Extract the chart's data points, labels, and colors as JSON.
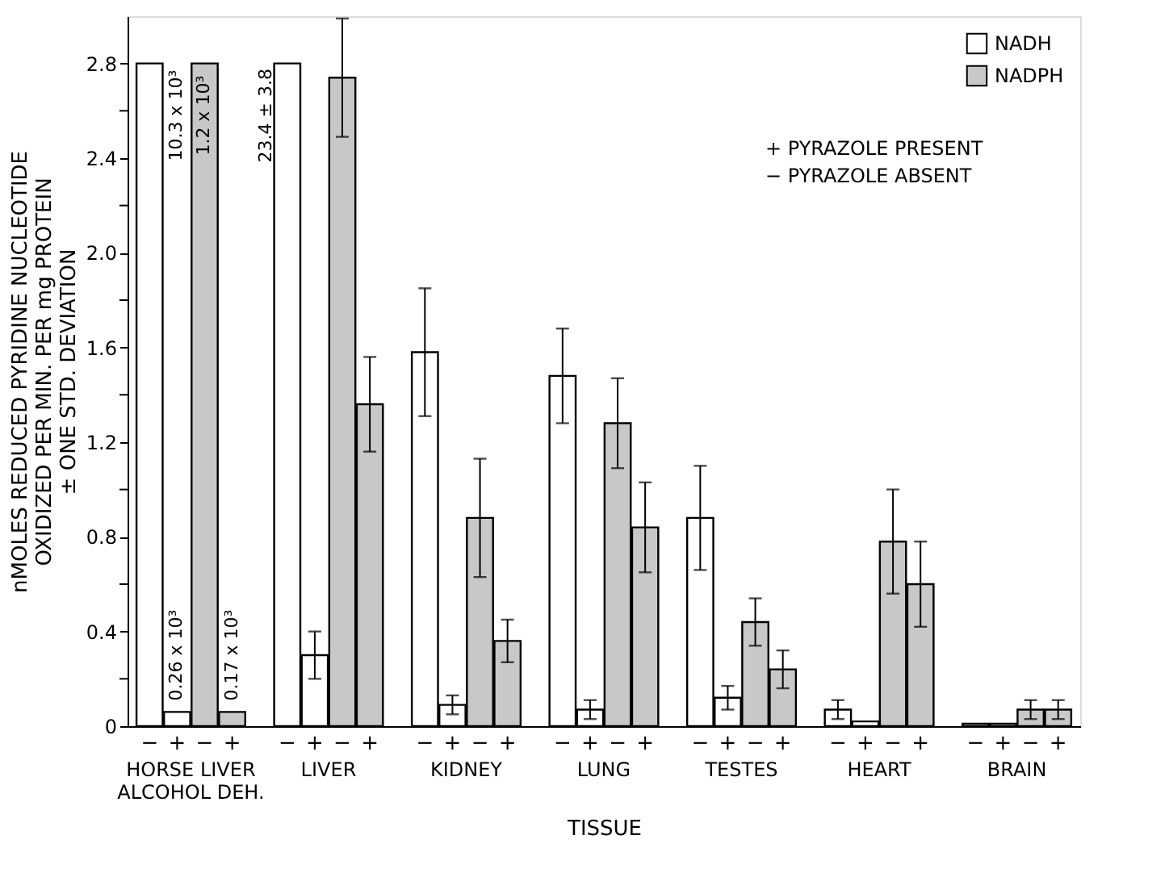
{
  "chart_data": {
    "type": "bar",
    "categories": [
      "−",
      "+",
      "−",
      "+",
      null,
      "−",
      "+",
      "−",
      "+",
      null,
      "−",
      "+",
      "−",
      "+",
      null,
      "−",
      "+",
      "−",
      "+",
      null,
      "−",
      "+",
      "−",
      "+",
      null,
      "−",
      "+",
      "−",
      "+",
      null,
      "−",
      "+",
      "−",
      "+"
    ],
    "series": [
      {
        "name": "NADH",
        "color": "#ffffff",
        "values": [
          2.8,
          0.06,
          null,
          null,
          null,
          2.8,
          0.3,
          null,
          null,
          null,
          1.58,
          0.09,
          null,
          null,
          null,
          1.48,
          0.07,
          null,
          null,
          null,
          0.88,
          0.12,
          null,
          null,
          null,
          0.07,
          0.02,
          null,
          null,
          null,
          0.01,
          0.01,
          null,
          null
        ],
        "errors": [
          null,
          null,
          null,
          null,
          null,
          null,
          0.1,
          null,
          null,
          null,
          0.27,
          0.04,
          null,
          null,
          null,
          0.2,
          0.04,
          null,
          null,
          null,
          0.22,
          0.05,
          null,
          null,
          null,
          0.04,
          null,
          null,
          null,
          null,
          null,
          null,
          null,
          null
        ]
      },
      {
        "name": "NADPH",
        "color": "#c8c8c8",
        "values": [
          null,
          null,
          2.8,
          0.06,
          null,
          null,
          null,
          2.74,
          1.36,
          null,
          null,
          null,
          0.88,
          0.36,
          null,
          null,
          null,
          1.28,
          0.84,
          null,
          null,
          null,
          0.44,
          0.24,
          null,
          null,
          null,
          0.78,
          0.6,
          null,
          null,
          null,
          0.07,
          0.07
        ],
        "errors": [
          null,
          null,
          null,
          null,
          null,
          null,
          null,
          0.25,
          0.2,
          null,
          null,
          null,
          0.25,
          0.09,
          null,
          null,
          null,
          0.19,
          0.19,
          null,
          null,
          null,
          0.1,
          0.08,
          null,
          null,
          null,
          0.22,
          0.18,
          null,
          null,
          null,
          0.04,
          0.04
        ]
      }
    ],
    "xlabel": "TISSUE",
    "ylabel": "nMOLES REDUCED PYRIDINE NUCLEOTIDE\nOXIDIZED PER MIN. PER mg PROTEIN\n± ONE STD. DEVIATION",
    "ylim": [
      0,
      3.0
    ],
    "yticks": [
      0,
      {
        "value": 0.2,
        "label": null
      },
      0.4,
      {
        "value": 0.6,
        "label": null
      },
      0.8,
      {
        "value": 1.0,
        "label": null
      },
      1.2,
      {
        "value": 1.4,
        "label": null
      },
      1.6,
      {
        "value": 1.8,
        "label": null
      },
      {
        "value": 2.0,
        "label": "2.0"
      },
      {
        "value": 2.2,
        "label": null
      },
      2.4,
      {
        "value": 2.6,
        "label": null
      },
      2.8
    ],
    "annotations": [
      "HORSE LIVER\nALCOHOL DEH.",
      "LIVER",
      "KIDNEY",
      "LUNG",
      "TESTES",
      "HEART",
      "BRAIN",
      "+  PYRAZOLE PRESENT",
      "−  PYRAZOLE ABSENT",
      "10.3 x 10³",
      "1.2 x 10³",
      "0.26 x 10³",
      "0.17 x 10³",
      "23.4 ± 3.8"
    ],
    "grid": false,
    "legend": "top right"
  }
}
